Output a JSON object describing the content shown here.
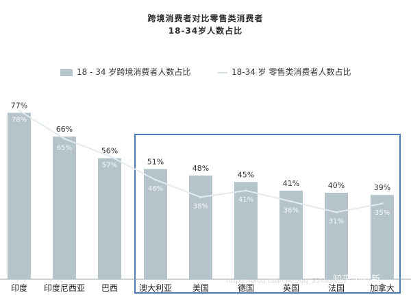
{
  "titles": {
    "line1": "跨境消费者对比零售类消费者",
    "line2": "18-34岁人数占比"
  },
  "legend": {
    "bar": "18 - 34 岁跨境消费者人数占比",
    "line": "18-34 岁 零售类消费者人数占比"
  },
  "watermark": {
    "text1": "知乎 @嘘新",
    "text2": "https://blog.csdn.net/qq_35483423"
  },
  "colors": {
    "bar": "#b5c3cb",
    "line": "#e4ebef",
    "highlight_box": "#4f7bb8",
    "bar_label": "#333333",
    "line_label": "#ffffff"
  },
  "chart_data": {
    "type": "bar",
    "categories": [
      "印度",
      "印度尼西亚",
      "巴西",
      "澳大利亚",
      "美国",
      "德国",
      "英国",
      "法国",
      "加拿大"
    ],
    "series": [
      {
        "name": "18 - 34 岁跨境消费者人数占比",
        "type": "bar",
        "values": [
          77,
          66,
          56,
          51,
          48,
          45,
          41,
          40,
          39
        ],
        "labels": [
          "77%",
          "66%",
          "56%",
          "51%",
          "48%",
          "45%",
          "41%",
          "40%",
          "39%"
        ]
      },
      {
        "name": "18-34 岁 零售类消费者人数占比",
        "type": "line",
        "values": [
          78,
          65,
          57,
          46,
          38,
          41,
          36,
          31,
          35
        ],
        "labels": [
          "78%",
          "65%",
          "57%",
          "46%",
          "38%",
          "41%",
          "36%",
          "31%",
          "35%"
        ]
      }
    ],
    "ylim": [
      0,
      100
    ],
    "highlight_categories": [
      "澳大利亚",
      "美国",
      "德国",
      "英国",
      "法国",
      "加拿大"
    ],
    "grid": false,
    "legend_position": "top"
  }
}
